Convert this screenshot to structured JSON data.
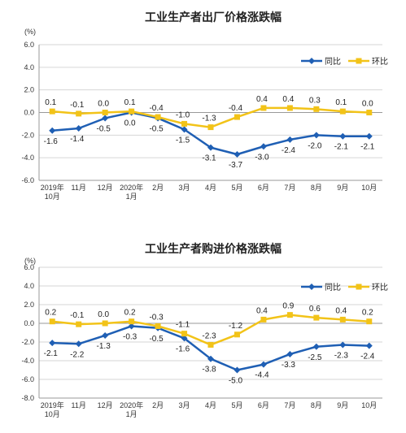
{
  "colors": {
    "yoy": "#1f5fb4",
    "mom": "#f2c318",
    "grid": "#d6d6d6",
    "axis": "#9a9a9a"
  },
  "chart_data": [
    {
      "type": "line",
      "title": "工业生产者出厂价格涨跌幅",
      "unit": "(%)",
      "categories": [
        "2019年\n10月",
        "11月",
        "12月",
        "2020年\n1月",
        "2月",
        "3月",
        "4月",
        "5月",
        "6月",
        "7月",
        "8月",
        "9月",
        "10月"
      ],
      "ylim": [
        -6.0,
        6.0
      ],
      "yticks": [
        "6.0",
        "4.0",
        "2.0",
        "0.0",
        "-2.0",
        "-4.0",
        "-6.0"
      ],
      "grid": true,
      "legend_position": "top-right",
      "series": [
        {
          "name": "同比",
          "color_key": "yoy",
          "marker": "diamond",
          "values": [
            -1.6,
            -1.4,
            -0.5,
            0.0,
            -0.5,
            -1.5,
            -3.1,
            -3.7,
            -3.0,
            -2.4,
            -2.0,
            -2.1,
            -2.1
          ],
          "labels": [
            "-1.6",
            "-1.4",
            "-0.5",
            "0.0",
            "-0.5",
            "-1.5",
            "-3.1",
            "-3.7",
            "-3.0",
            "-2.4",
            "-2.0",
            "-2.1",
            "-2.1"
          ]
        },
        {
          "name": "环比",
          "color_key": "mom",
          "marker": "square",
          "values": [
            0.1,
            -0.1,
            0.0,
            0.1,
            -0.4,
            -1.0,
            -1.3,
            -0.4,
            0.4,
            0.4,
            0.3,
            0.1,
            0.0
          ],
          "labels": [
            "0.1",
            "-0.1",
            "0.0",
            "0.1",
            "-0.4",
            "-1.0",
            "-1.3",
            "-0.4",
            "0.4",
            "0.4",
            "0.3",
            "0.1",
            "0.0"
          ]
        }
      ]
    },
    {
      "type": "line",
      "title": "工业生产者购进价格涨跌幅",
      "unit": "(%)",
      "categories": [
        "2019年\n10月",
        "11月",
        "12月",
        "2020年\n1月",
        "2月",
        "3月",
        "4月",
        "5月",
        "6月",
        "7月",
        "8月",
        "9月",
        "10月"
      ],
      "ylim": [
        -8.0,
        6.0
      ],
      "yticks": [
        "6.0",
        "4.0",
        "2.0",
        "0.0",
        "-2.0",
        "-4.0",
        "-6.0",
        "-8.0"
      ],
      "grid": true,
      "legend_position": "top-right",
      "series": [
        {
          "name": "同比",
          "color_key": "yoy",
          "marker": "diamond",
          "values": [
            -2.1,
            -2.2,
            -1.3,
            -0.3,
            -0.5,
            -1.6,
            -3.8,
            -5.0,
            -4.4,
            -3.3,
            -2.5,
            -2.3,
            -2.4
          ],
          "labels": [
            "-2.1",
            "-2.2",
            "-1.3",
            "-0.3",
            "-0.5",
            "-1.6",
            "-3.8",
            "-5.0",
            "-4.4",
            "-3.3",
            "-2.5",
            "-2.3",
            "-2.4"
          ]
        },
        {
          "name": "环比",
          "color_key": "mom",
          "marker": "square",
          "values": [
            0.2,
            -0.1,
            0.0,
            0.2,
            -0.3,
            -1.1,
            -2.3,
            -1.2,
            0.4,
            0.9,
            0.6,
            0.4,
            0.2
          ],
          "labels": [
            "0.2",
            "-0.1",
            "0.0",
            "0.2",
            "-0.3",
            "-1.1",
            "-2.3",
            "-1.2",
            "0.4",
            "0.9",
            "0.6",
            "0.4",
            "0.2"
          ]
        }
      ]
    }
  ]
}
